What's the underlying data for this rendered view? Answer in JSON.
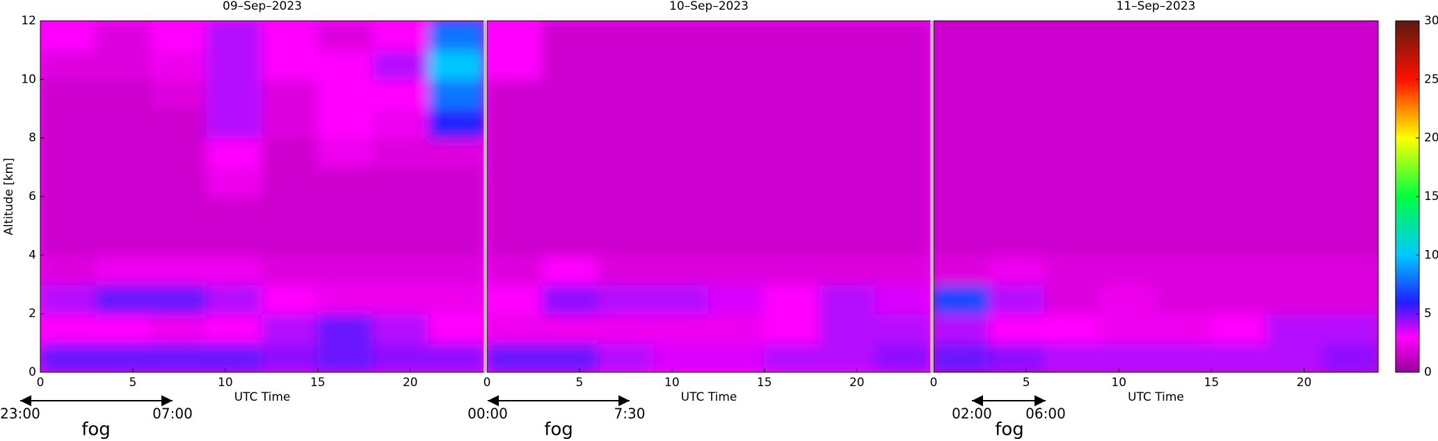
{
  "chart_data": [
    {
      "type": "heatmap",
      "title": "09–Sep–2023",
      "xlabel": "UTC Time",
      "ylabel": "Altitude [km]",
      "xlim": [
        0,
        24
      ],
      "ylim": [
        0,
        12
      ],
      "xticks": [
        0,
        5,
        10,
        15,
        20
      ],
      "yticks": [
        0,
        2,
        4,
        6,
        8,
        10,
        12
      ],
      "x_edges": [
        0,
        3,
        6,
        9,
        12,
        15,
        18,
        21,
        24
      ],
      "y_edges": [
        0,
        1,
        2,
        3,
        4,
        5,
        6,
        7,
        8,
        9,
        10,
        11,
        12
      ],
      "z": [
        [
          5,
          5,
          5,
          5,
          4.5,
          5,
          4.5,
          4.5
        ],
        [
          3,
          3,
          2.5,
          3,
          4,
          5,
          4,
          3
        ],
        [
          4,
          5,
          5,
          4,
          3,
          2.5,
          2.5,
          2.5
        ],
        [
          2,
          2.5,
          2.5,
          2.5,
          2,
          2,
          2,
          2
        ],
        [
          1.5,
          1.5,
          1.5,
          1.5,
          1.5,
          1.5,
          1.5,
          1.5
        ],
        [
          1.5,
          1.5,
          1.5,
          1.5,
          1.5,
          1.5,
          1.5,
          1.5
        ],
        [
          1.5,
          1.5,
          1.5,
          2.5,
          1.5,
          1.5,
          1.5,
          1.5
        ],
        [
          1.5,
          1.5,
          1.5,
          3,
          1.5,
          2.5,
          2,
          2
        ],
        [
          1.5,
          1.5,
          1.5,
          4,
          2,
          3,
          2.5,
          6
        ],
        [
          1.5,
          1.5,
          2,
          4,
          2,
          3,
          3,
          8
        ],
        [
          2,
          2,
          2.5,
          4,
          3,
          3,
          4,
          10
        ],
        [
          3,
          2,
          3,
          4,
          3,
          2,
          3,
          8
        ]
      ],
      "annotation": {
        "start": "23:00",
        "end": "07:00",
        "label": "fog"
      }
    },
    {
      "type": "heatmap",
      "title": "10–Sep–2023",
      "xlabel": "UTC Time",
      "xlim": [
        0,
        24
      ],
      "ylim": [
        0,
        12
      ],
      "xticks": [
        0,
        5,
        10,
        15,
        20
      ],
      "x_edges": [
        0,
        3,
        6,
        9,
        12,
        15,
        18,
        21,
        24
      ],
      "y_edges": [
        0,
        1,
        2,
        3,
        4,
        5,
        6,
        7,
        8,
        9,
        10,
        11,
        12
      ],
      "z": [
        [
          5,
          5,
          4,
          3.5,
          3.5,
          4,
          4,
          4.5
        ],
        [
          2.5,
          2.5,
          2.5,
          2.5,
          2.5,
          3,
          4,
          4
        ],
        [
          3,
          4.5,
          4,
          4,
          3.5,
          3,
          4,
          3.5
        ],
        [
          2,
          3,
          2,
          2,
          2,
          2,
          2,
          2
        ],
        [
          1.5,
          1.5,
          1.5,
          1.5,
          1.5,
          1.5,
          1.5,
          1.5
        ],
        [
          1.5,
          1.5,
          1.5,
          1.5,
          1.5,
          1.5,
          1.5,
          1.5
        ],
        [
          1.5,
          1.5,
          1.5,
          1.5,
          1.5,
          1.5,
          1.5,
          1.5
        ],
        [
          1.5,
          1.5,
          1.5,
          1.5,
          1.5,
          1.5,
          1.5,
          1.5
        ],
        [
          1.5,
          1.5,
          1.5,
          1.5,
          1.5,
          1.5,
          1.5,
          1.5
        ],
        [
          1.5,
          1.5,
          1.5,
          1.5,
          1.5,
          1.5,
          1.5,
          1.5
        ],
        [
          3,
          1.5,
          1.5,
          1.5,
          1.5,
          1.5,
          1.5,
          1.5
        ],
        [
          3,
          1.5,
          1.5,
          1.5,
          1.5,
          1.5,
          1.5,
          1.5
        ]
      ],
      "annotation": {
        "start": "00:00",
        "end": "7:30",
        "label": "fog"
      }
    },
    {
      "type": "heatmap",
      "title": "11–Sep–2023",
      "xlabel": "UTC Time",
      "xlim": [
        0,
        24
      ],
      "ylim": [
        0,
        12
      ],
      "xticks": [
        0,
        5,
        10,
        15,
        20
      ],
      "x_edges": [
        0,
        3,
        6,
        9,
        12,
        15,
        18,
        21,
        24
      ],
      "y_edges": [
        0,
        1,
        2,
        3,
        4,
        5,
        6,
        7,
        8,
        9,
        10,
        11,
        12
      ],
      "z": [
        [
          5,
          4.5,
          4,
          4,
          4,
          4,
          4,
          4.5
        ],
        [
          4,
          3,
          3,
          2.5,
          2.5,
          3,
          4,
          4
        ],
        [
          7,
          4,
          2,
          2.5,
          2,
          2,
          2,
          2
        ],
        [
          2,
          2.5,
          2,
          2,
          2,
          2,
          2,
          2
        ],
        [
          1.5,
          1.5,
          1.5,
          1.5,
          1.5,
          1.5,
          1.5,
          1.5
        ],
        [
          1.5,
          1.5,
          1.5,
          1.5,
          1.5,
          1.5,
          1.5,
          1.5
        ],
        [
          1.5,
          1.5,
          1.5,
          1.5,
          1.5,
          1.5,
          1.5,
          1.5
        ],
        [
          1.5,
          1.5,
          1.5,
          1.5,
          1.5,
          1.5,
          1.5,
          1.5
        ],
        [
          1.5,
          1.5,
          1.5,
          1.5,
          1.5,
          1.5,
          1.5,
          1.5
        ],
        [
          1.5,
          1.5,
          1.5,
          1.5,
          1.5,
          1.5,
          1.5,
          1.5
        ],
        [
          1.5,
          1.5,
          1.5,
          1.5,
          1.5,
          1.5,
          1.5,
          1.5
        ],
        [
          1.5,
          1.5,
          1.5,
          1.5,
          1.5,
          1.5,
          1.5,
          1.5
        ]
      ],
      "annotation": {
        "start": "02:00",
        "end": "06:00",
        "label": "fog"
      }
    },
    {
      "type": "colorbar",
      "clim": [
        0,
        30
      ],
      "cticks": [
        0,
        5,
        10,
        15,
        20,
        25,
        30
      ],
      "colormap": [
        [
          0,
          "#99009c"
        ],
        [
          3,
          "#ff00ff"
        ],
        [
          6,
          "#2020ff"
        ],
        [
          10,
          "#00c8ff"
        ],
        [
          15,
          "#00ff40"
        ],
        [
          20,
          "#ffff00"
        ],
        [
          25,
          "#ff1000"
        ],
        [
          30,
          "#5a1a10"
        ]
      ]
    }
  ]
}
